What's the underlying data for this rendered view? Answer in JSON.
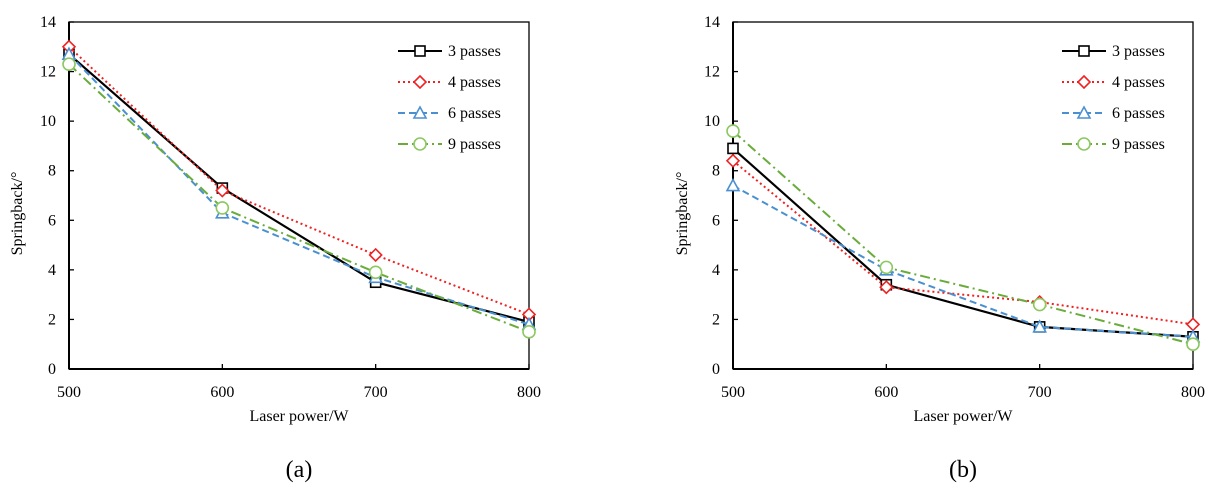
{
  "chart_data": [
    {
      "type": "line",
      "panel": "(a)",
      "title": "",
      "xlabel": "Laser power/W",
      "ylabel": "Springback/°",
      "x": [
        500,
        600,
        700,
        800
      ],
      "xticks": [
        "500",
        "600",
        "700",
        "800"
      ],
      "yticks": [
        "0",
        "2",
        "4",
        "6",
        "8",
        "10",
        "12",
        "14"
      ],
      "xlim": [
        500,
        800
      ],
      "ylim": [
        0,
        14
      ],
      "grid": false,
      "legend_position": "top-right",
      "series": [
        {
          "name": "3 passes",
          "values": [
            12.7,
            7.3,
            3.5,
            1.9
          ],
          "color": "#000000",
          "marker": "square",
          "dash": "solid"
        },
        {
          "name": "4 passes",
          "values": [
            13.0,
            7.2,
            4.6,
            2.2
          ],
          "color": "#ee2222",
          "marker": "diamond",
          "dash": "dotted"
        },
        {
          "name": "6 passes",
          "values": [
            12.7,
            6.3,
            3.7,
            1.8
          ],
          "color": "#4a90d0",
          "marker": "triangle",
          "dash": "dashed"
        },
        {
          "name": "9 passes",
          "values": [
            12.3,
            6.5,
            3.9,
            1.5
          ],
          "color": "#6aac3c",
          "marker": "circle",
          "dash": "dashdot"
        }
      ]
    },
    {
      "type": "line",
      "panel": "(b)",
      "title": "",
      "xlabel": "Laser power/W",
      "ylabel": "Springback/°",
      "x": [
        500,
        600,
        700,
        800
      ],
      "xticks": [
        "500",
        "600",
        "700",
        "800"
      ],
      "yticks": [
        "0",
        "2",
        "4",
        "6",
        "8",
        "10",
        "12",
        "14"
      ],
      "xlim": [
        500,
        800
      ],
      "ylim": [
        0,
        14
      ],
      "grid": false,
      "legend_position": "top-right",
      "series": [
        {
          "name": "3 passes",
          "values": [
            8.9,
            3.4,
            1.7,
            1.3
          ],
          "color": "#000000",
          "marker": "square",
          "dash": "solid"
        },
        {
          "name": "4 passes",
          "values": [
            8.4,
            3.3,
            2.7,
            1.8
          ],
          "color": "#ee2222",
          "marker": "diamond",
          "dash": "dotted"
        },
        {
          "name": "6 passes",
          "values": [
            7.4,
            4.0,
            1.7,
            1.3
          ],
          "color": "#4a90d0",
          "marker": "triangle",
          "dash": "dashed"
        },
        {
          "name": "9 passes",
          "values": [
            9.6,
            4.1,
            2.6,
            1.0
          ],
          "color": "#6aac3c",
          "marker": "circle",
          "dash": "dashdot"
        }
      ]
    }
  ]
}
